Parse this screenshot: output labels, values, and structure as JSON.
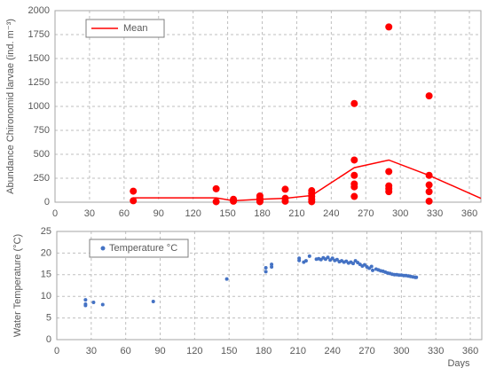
{
  "chart_data": [
    {
      "type": "scatter",
      "ylabel": "Abundance Chironomid larvae (ind. m⁻³)",
      "xlim": [
        0,
        370
      ],
      "xticks": [
        0,
        30,
        60,
        90,
        120,
        150,
        180,
        210,
        240,
        270,
        300,
        330,
        360
      ],
      "ylim": [
        0,
        2000
      ],
      "yticks": [
        0,
        250,
        500,
        750,
        1000,
        1250,
        1500,
        1750,
        2000
      ],
      "grid": true,
      "legend": "upper left",
      "points": {
        "color": "#ff0000",
        "x": [
          68,
          68,
          140,
          140,
          155,
          155,
          178,
          178,
          178,
          178,
          200,
          200,
          200,
          223,
          223,
          223,
          223,
          223,
          260,
          260,
          260,
          260,
          260,
          260,
          290,
          290,
          290,
          290,
          290,
          325,
          325,
          325,
          325,
          325
        ],
        "values": [
          115,
          15,
          140,
          5,
          30,
          10,
          65,
          40,
          20,
          5,
          135,
          40,
          10,
          120,
          90,
          60,
          30,
          5,
          1030,
          440,
          280,
          190,
          160,
          60,
          1830,
          320,
          170,
          140,
          110,
          1110,
          280,
          180,
          110,
          10
        ]
      },
      "series": [
        {
          "name": "Mean",
          "color": "#ff0000",
          "style": "line",
          "x": [
            68,
            140,
            155,
            178,
            200,
            223,
            260,
            290,
            325,
            370
          ],
          "values": [
            45,
            45,
            15,
            30,
            40,
            70,
            360,
            440,
            280,
            40
          ]
        }
      ]
    },
    {
      "type": "scatter",
      "ylabel": "Water Temperature (°C)",
      "xlabel": "Days",
      "xlim": [
        0,
        370
      ],
      "xticks": [
        0,
        30,
        60,
        90,
        120,
        150,
        180,
        210,
        240,
        270,
        300,
        330,
        360
      ],
      "ylim": [
        0,
        25
      ],
      "yticks": [
        0,
        5,
        10,
        15,
        20,
        25
      ],
      "grid": true,
      "legend": "upper left",
      "series": [
        {
          "name": "Temperature °C",
          "color": "#4472c4",
          "style": "markers",
          "x": [
            25,
            25,
            25,
            32,
            40,
            84,
            148,
            182,
            182,
            187,
            187,
            211,
            211,
            215,
            217,
            220,
            226,
            228,
            230,
            232,
            234,
            236,
            238,
            240,
            242,
            244,
            246,
            248,
            250,
            252,
            254,
            256,
            258,
            260,
            262,
            264,
            266,
            268,
            270,
            272,
            274,
            275,
            278,
            280,
            282,
            284,
            286,
            288,
            290,
            292,
            294,
            296,
            298,
            300,
            302,
            304,
            306,
            308,
            310,
            312,
            313
          ],
          "values": [
            9.2,
            8.2,
            7.9,
            8.6,
            8.1,
            8.8,
            14,
            15.7,
            16.6,
            16.8,
            17.4,
            18.8,
            18.3,
            17.9,
            18.2,
            19.3,
            18.6,
            18.7,
            18.5,
            18.9,
            18.6,
            19.0,
            18.4,
            18.8,
            18.3,
            18.5,
            18.0,
            18.2,
            17.9,
            18.1,
            17.7,
            17.9,
            17.6,
            18.2,
            17.8,
            17.4,
            17.0,
            17.3,
            16.8,
            16.5,
            16.9,
            16.0,
            16.3,
            16.1,
            15.9,
            15.8,
            15.6,
            15.4,
            15.3,
            15.1,
            15.0,
            15.0,
            14.9,
            14.9,
            14.8,
            14.8,
            14.7,
            14.6,
            14.5,
            14.4,
            14.4
          ]
        }
      ]
    }
  ]
}
